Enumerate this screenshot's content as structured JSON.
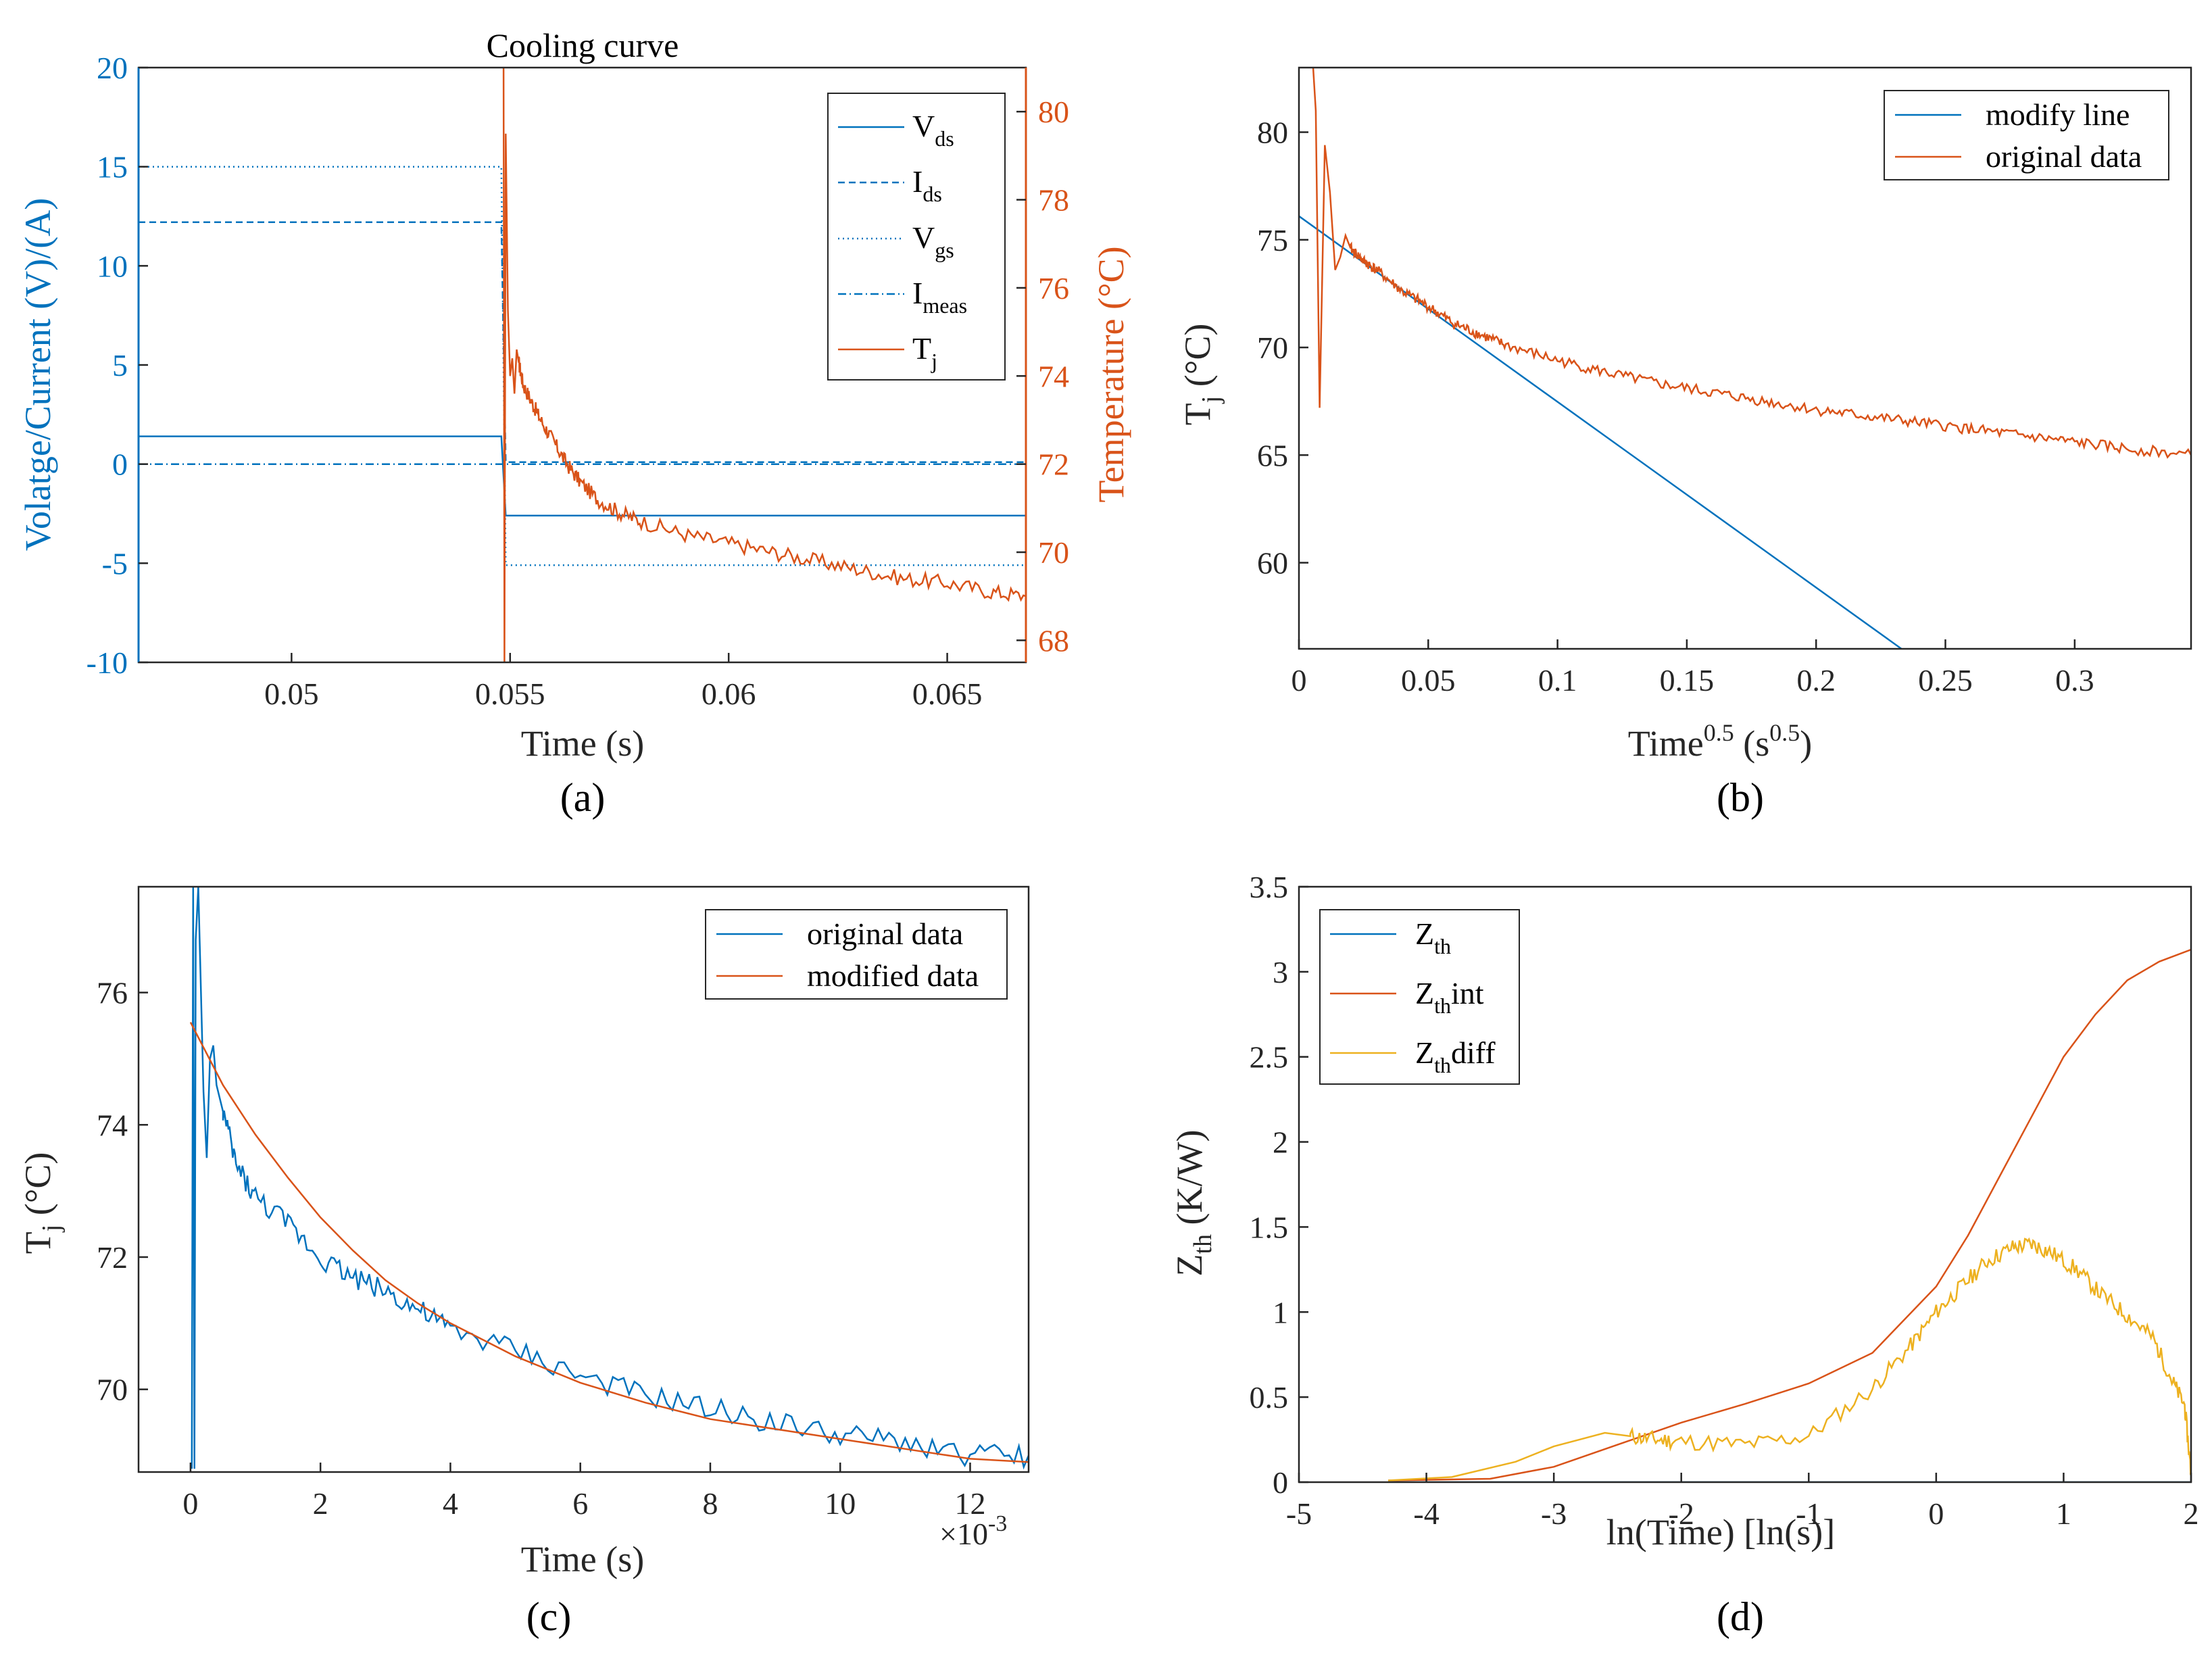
{
  "colors": {
    "blue": "#0072BD",
    "orange": "#D95319",
    "yellow": "#EDB120",
    "axis": "#262626"
  },
  "chart_data": [
    {
      "id": "a",
      "type": "line",
      "caption": "(a)",
      "title": "Cooling curve",
      "xlabel": "Time (s)",
      "ylabel_left": "Volatge/Current (V)/(A)",
      "ylabel_right": "Temperature (°C)",
      "xlim": [
        0.0465,
        0.0668
      ],
      "ylim_left": [
        -10,
        20
      ],
      "ylim_right": [
        67.5,
        81
      ],
      "x_ticks": [
        "0.05",
        "0.055",
        "0.06",
        "0.065"
      ],
      "x_tick_values": [
        0.05,
        0.055,
        0.06,
        0.065
      ],
      "y_left_ticks": [
        "-10",
        "-5",
        "0",
        "5",
        "10",
        "15",
        "20"
      ],
      "y_left_tick_values": [
        -10,
        -5,
        0,
        5,
        10,
        15,
        20
      ],
      "y_right_ticks": [
        "68",
        "70",
        "72",
        "74",
        "76",
        "78",
        "80"
      ],
      "y_right_tick_values": [
        68,
        70,
        72,
        74,
        76,
        78,
        80
      ],
      "legend": {
        "location": "top-right",
        "entries": [
          {
            "base": "V",
            "sub": "ds",
            "style": "solid"
          },
          {
            "base": "I",
            "sub": "ds",
            "style": "dashed"
          },
          {
            "base": "V",
            "sub": "gs",
            "style": "dotted"
          },
          {
            "base": "I",
            "sub": "meas",
            "style": "dashdot"
          },
          {
            "base": "T",
            "sub": "j",
            "style": "solid-orange"
          }
        ]
      },
      "series": [
        {
          "name": "Vds",
          "axis": "left",
          "x": [
            0.0465,
            0.0548,
            0.0549,
            0.0668
          ],
          "y": [
            1.4,
            1.4,
            -2.6,
            -2.6
          ]
        },
        {
          "name": "Ids",
          "axis": "left",
          "x": [
            0.0465,
            0.0548,
            0.0549,
            0.0668
          ],
          "y": [
            12.2,
            12.2,
            0.1,
            0.1
          ]
        },
        {
          "name": "Vgs",
          "axis": "left",
          "x": [
            0.0465,
            0.0548,
            0.0549,
            0.0668
          ],
          "y": [
            15.0,
            15.0,
            -5.1,
            -5.1
          ]
        },
        {
          "name": "Imeas",
          "axis": "left",
          "x": [
            0.0465,
            0.0668
          ],
          "y": [
            0.0,
            0.0
          ]
        },
        {
          "name": "Tj",
          "axis": "right",
          "x": [
            0.05485,
            0.05487,
            0.0549,
            0.05495,
            0.055,
            0.05505,
            0.0551,
            0.05515,
            0.0552,
            0.0553,
            0.0555,
            0.0557,
            0.056,
            0.0563,
            0.0566,
            0.057,
            0.0575,
            0.058,
            0.059,
            0.06,
            0.061,
            0.062,
            0.063,
            0.064,
            0.065,
            0.066,
            0.0668
          ],
          "y": [
            81,
            67.5,
            79.5,
            75.5,
            74.0,
            74.4,
            73.6,
            74.6,
            74.3,
            73.8,
            73.4,
            73.0,
            72.5,
            72.0,
            71.6,
            71.2,
            70.9,
            70.7,
            70.4,
            70.2,
            70.0,
            69.8,
            69.6,
            69.4,
            69.3,
            69.1,
            69.0
          ]
        }
      ]
    },
    {
      "id": "b",
      "type": "line",
      "caption": "(b)",
      "xlabel": "Time",
      "xlabel_sup1": "0.5",
      "xlabel_mid": " (s",
      "xlabel_sup2": "0.5",
      "xlabel_end": ")",
      "ylabel_base": "T",
      "ylabel_sub": "j",
      "ylabel_end": " (°C)",
      "xlim": [
        0,
        0.345
      ],
      "ylim": [
        56,
        83
      ],
      "x_ticks": [
        "0",
        "0.05",
        "0.1",
        "0.15",
        "0.2",
        "0.25",
        "0.3"
      ],
      "x_tick_values": [
        0,
        0.05,
        0.1,
        0.15,
        0.2,
        0.25,
        0.3
      ],
      "y_ticks": [
        "60",
        "65",
        "70",
        "75",
        "80"
      ],
      "y_tick_values": [
        60,
        65,
        70,
        75,
        80
      ],
      "legend": {
        "location": "top-right",
        "entries": [
          {
            "label": "modify line",
            "color": "#0072BD"
          },
          {
            "label": "original data",
            "color": "#D95319"
          }
        ]
      },
      "series": [
        {
          "name": "modify line",
          "x": [
            0,
            0.233
          ],
          "y": [
            76.1,
            56
          ]
        },
        {
          "name": "original data",
          "x": [
            0.0055,
            0.0065,
            0.008,
            0.01,
            0.012,
            0.014,
            0.016,
            0.018,
            0.02,
            0.025,
            0.03,
            0.04,
            0.05,
            0.06,
            0.07,
            0.08,
            0.1,
            0.12,
            0.14,
            0.16,
            0.18,
            0.2,
            0.22,
            0.24,
            0.26,
            0.28,
            0.3,
            0.32,
            0.345
          ],
          "y": [
            83,
            81,
            67.2,
            79.4,
            77.2,
            73.6,
            74.2,
            75.2,
            74.6,
            74.0,
            73.6,
            72.6,
            71.9,
            71.1,
            70.6,
            70.1,
            69.4,
            68.8,
            68.3,
            67.9,
            67.5,
            67.1,
            66.8,
            66.5,
            66.2,
            65.9,
            65.6,
            65.3,
            65.0
          ]
        }
      ]
    },
    {
      "id": "c",
      "type": "line",
      "caption": "(c)",
      "xlabel": "Time (s)",
      "x_multiplier_base": "×10",
      "x_multiplier_exp": "-3",
      "ylabel_base": "T",
      "ylabel_sub": "j",
      "ylabel_end": " (°C)",
      "xlim": [
        -0.8,
        12.9
      ],
      "ylim": [
        68.75,
        77.6
      ],
      "x_ticks": [
        "0",
        "2",
        "4",
        "6",
        "8",
        "10",
        "12"
      ],
      "x_tick_values": [
        0,
        2,
        4,
        6,
        8,
        10,
        12
      ],
      "y_ticks": [
        "70",
        "72",
        "74",
        "76"
      ],
      "y_tick_values": [
        70,
        72,
        74,
        76
      ],
      "legend": {
        "location": "top-right",
        "entries": [
          {
            "label": "original data",
            "color": "#0072BD"
          },
          {
            "label": "modified data",
            "color": "#D95319"
          }
        ]
      },
      "series": [
        {
          "name": "original data",
          "x": [
            0.02,
            0.04,
            0.06,
            0.08,
            0.12,
            0.2,
            0.25,
            0.3,
            0.35,
            0.4,
            0.5,
            0.7,
            1.0,
            1.5,
            2.0,
            2.5,
            3.0,
            3.5,
            4.0,
            5.0,
            6.0,
            7.0,
            8.0,
            9.0,
            10.0,
            11.0,
            12.0,
            12.9
          ],
          "y": [
            68.8,
            77.6,
            68.8,
            76.8,
            77.6,
            74.5,
            73.5,
            75.0,
            75.2,
            74.6,
            74.2,
            73.4,
            72.9,
            72.5,
            72.0,
            71.7,
            71.5,
            71.2,
            70.9,
            70.6,
            70.2,
            69.9,
            69.7,
            69.5,
            69.3,
            69.2,
            69.0,
            69.0
          ]
        },
        {
          "name": "modified data",
          "x": [
            0,
            0.5,
            1,
            1.5,
            2,
            2.5,
            3,
            3.5,
            4,
            5,
            6,
            7,
            8,
            9,
            10,
            11,
            12,
            12.9
          ],
          "y": [
            75.55,
            74.6,
            73.85,
            73.2,
            72.6,
            72.1,
            71.65,
            71.3,
            71.0,
            70.5,
            70.1,
            69.8,
            69.55,
            69.4,
            69.25,
            69.1,
            68.95,
            68.9
          ]
        }
      ]
    },
    {
      "id": "d",
      "type": "line",
      "caption": "(d)",
      "xlabel": "ln(Time) [ln(s)]",
      "ylabel_base": "Z",
      "ylabel_sub": "th",
      "ylabel_end": " (K/W)",
      "xlim": [
        -5,
        2
      ],
      "ylim": [
        0,
        3.5
      ],
      "x_ticks": [
        "-5",
        "-4",
        "-3",
        "-2",
        "-1",
        "0",
        "1",
        "2"
      ],
      "x_tick_values": [
        -5,
        -4,
        -3,
        -2,
        -1,
        0,
        1,
        2
      ],
      "y_ticks": [
        "0",
        "0.5",
        "1",
        "1.5",
        "2",
        "2.5",
        "3",
        "3.5"
      ],
      "y_tick_values": [
        0,
        0.5,
        1,
        1.5,
        2,
        2.5,
        3,
        3.5
      ],
      "legend": {
        "location": "top-left",
        "entries": [
          {
            "base": "Z",
            "sub": "th",
            "suffix": "",
            "color": "#0072BD"
          },
          {
            "base": "Z",
            "sub": "th",
            "suffix": "int",
            "color": "#D95319"
          },
          {
            "base": "Z",
            "sub": "th",
            "suffix": "diff",
            "color": "#EDB120"
          }
        ]
      },
      "series": [
        {
          "name": "Zth",
          "x": [
            -4.3,
            2
          ],
          "y": [
            0,
            0
          ]
        },
        {
          "name": "Zthint",
          "x": [
            -4.3,
            -3.5,
            -3.0,
            -2.5,
            -2.0,
            -1.5,
            -1.0,
            -0.5,
            0.0,
            0.25,
            0.5,
            0.75,
            1.0,
            1.25,
            1.5,
            1.75,
            2.0
          ],
          "y": [
            0.01,
            0.02,
            0.09,
            0.22,
            0.35,
            0.46,
            0.58,
            0.76,
            1.15,
            1.45,
            1.8,
            2.15,
            2.5,
            2.75,
            2.95,
            3.06,
            3.13
          ]
        },
        {
          "name": "Zthdiff",
          "x": [
            -4.3,
            -3.8,
            -3.3,
            -3.0,
            -2.8,
            -2.6,
            -2.4,
            -2.2,
            -2.0,
            -1.5,
            -1.0,
            -0.5,
            -0.2,
            0.0,
            0.2,
            0.4,
            0.6,
            0.75,
            0.9,
            1.1,
            1.3,
            1.5,
            1.7,
            1.85,
            1.95,
            2.0
          ],
          "y": [
            0.01,
            0.03,
            0.12,
            0.21,
            0.25,
            0.29,
            0.27,
            0.25,
            0.24,
            0.22,
            0.27,
            0.55,
            0.8,
            1.0,
            1.15,
            1.3,
            1.38,
            1.4,
            1.35,
            1.25,
            1.1,
            0.98,
            0.85,
            0.6,
            0.45,
            0.05
          ]
        }
      ]
    }
  ]
}
